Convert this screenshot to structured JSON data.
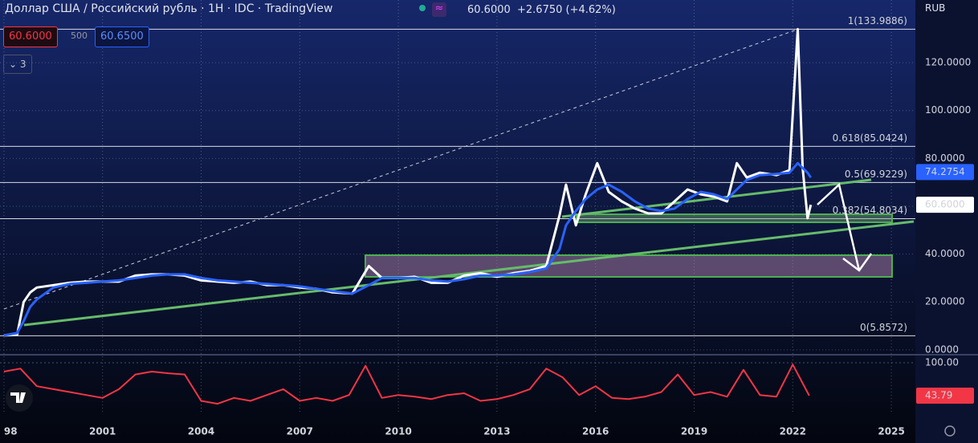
{
  "header": {
    "title": "Доллар США / Российский рубль · 1Н · IDC · TradingView",
    "price": "60.6000",
    "change": "+2.6750 (+4.62%)",
    "currency": "RUB",
    "sell": "60.6000",
    "spread": "500",
    "buy": "60.6500",
    "indicators": "3"
  },
  "chart_data": [
    {
      "type": "line",
      "x": [
        1998.0,
        1998.4,
        1998.6,
        1998.8,
        1999.0,
        1999.5,
        2000.0,
        2000.5,
        2001.0,
        2001.5,
        2002.0,
        2002.5,
        2003.0,
        2003.5,
        2004.0,
        2004.5,
        2005.0,
        2005.5,
        2006.0,
        2006.5,
        2007.0,
        2007.5,
        2008.0,
        2008.6,
        2009.1,
        2009.5,
        2010.0,
        2010.5,
        2011.0,
        2011.5,
        2012.0,
        2012.5,
        2013.0,
        2013.5,
        2014.0,
        2014.5,
        2014.9,
        2015.1,
        2015.4,
        2015.7,
        2016.05,
        2016.4,
        2016.8,
        2017.2,
        2017.6,
        2018.0,
        2018.4,
        2018.8,
        2019.2,
        2019.6,
        2020.0,
        2020.3,
        2020.6,
        2021.0,
        2021.5,
        2021.9,
        2022.15,
        2022.3,
        2022.45,
        2022.55
      ],
      "series": [
        {
          "color": "#ffffff",
          "values": [
            6,
            6.2,
            20,
            24,
            26,
            27,
            28,
            28.5,
            28.5,
            28.5,
            31,
            31.5,
            31.5,
            31,
            29,
            28.5,
            28,
            28.5,
            27,
            27,
            26,
            25.5,
            24,
            23.5,
            35,
            30,
            30,
            30.5,
            28,
            28,
            31,
            32,
            30.5,
            32,
            33,
            35,
            56,
            69,
            52,
            65,
            78,
            66,
            62,
            59,
            57,
            57,
            62,
            67,
            65,
            64,
            62,
            78,
            72,
            74,
            73,
            75,
            134,
            76,
            55,
            60.6
          ],
          "last_value": {
            "value": 60.6,
            "label": "60.6000"
          }
        },
        {
          "color": "#2962ff",
          "values": [
            6,
            7,
            12,
            18,
            21,
            26,
            27.5,
            28,
            28.5,
            29,
            30,
            31,
            31.5,
            31.5,
            30,
            29,
            28.5,
            28,
            27.5,
            27,
            26.5,
            25.5,
            24.5,
            23.5,
            27,
            30,
            30,
            30,
            29,
            28.5,
            29.5,
            31,
            31,
            31.5,
            32.5,
            34,
            42,
            52,
            58,
            63,
            67,
            69,
            66,
            62,
            59,
            58,
            59,
            63,
            66,
            65,
            63,
            67,
            71,
            73,
            73.5,
            74,
            78,
            76,
            74,
            72
          ],
          "last_value": 74.2754
        }
      ],
      "xlim": [
        1997.88,
        2025.73
      ],
      "xticks": [
        {
          "value": 1998,
          "label": "98"
        },
        2001,
        2004,
        2007,
        2010,
        2013,
        2016,
        2019,
        2022,
        2025
      ],
      "ylim": [
        -1.4,
        146.2
      ],
      "yticks": [
        {
          "value": 0,
          "label": "0.0000"
        },
        {
          "value": 20,
          "label": "20.0000"
        },
        {
          "value": 40,
          "label": "40.0000"
        },
        {
          "value": 60,
          "label": "60.0000"
        },
        {
          "value": 80,
          "label": "80.0000"
        },
        {
          "value": 100,
          "label": "100.0000"
        },
        {
          "value": 120,
          "label": "120.0000"
        }
      ],
      "grid": true,
      "fib_levels": [
        {
          "value": 133.9886,
          "label": "1(133.9886)"
        },
        {
          "value": 85.0424,
          "label": "0.618(85.0424)"
        },
        {
          "value": 69.9229,
          "label": "0.5(69.9229)"
        },
        {
          "value": 54.8034,
          "label": "0.382(54.8034)"
        },
        {
          "value": 5.8572,
          "label": "0(5.8572)"
        }
      ]
    },
    {
      "type": "line",
      "x": [
        1998.0,
        1998.5,
        1999.0,
        1999.5,
        2000.0,
        2000.5,
        2001.0,
        2001.5,
        2002.0,
        2002.5,
        2003.0,
        2003.5,
        2004.0,
        2004.5,
        2005.0,
        2005.5,
        2006.0,
        2006.5,
        2007.0,
        2007.5,
        2008.0,
        2008.5,
        2009.0,
        2009.5,
        2010.0,
        2010.5,
        2011.0,
        2011.5,
        2012.0,
        2012.5,
        2013.0,
        2013.5,
        2014.0,
        2014.5,
        2015.0,
        2015.5,
        2016.0,
        2016.5,
        2017.0,
        2017.5,
        2018.0,
        2018.5,
        2019.0,
        2019.5,
        2020.0,
        2020.5,
        2021.0,
        2021.5,
        2022.0,
        2022.5
      ],
      "series": [
        {
          "color": "#f23645",
          "values": [
            85,
            90,
            60,
            55,
            50,
            45,
            40,
            55,
            80,
            85,
            82,
            80,
            35,
            30,
            40,
            35,
            45,
            55,
            35,
            40,
            35,
            45,
            95,
            40,
            45,
            42,
            38,
            45,
            48,
            35,
            38,
            45,
            55,
            90,
            75,
            45,
            60,
            40,
            38,
            42,
            50,
            80,
            45,
            50,
            42,
            88,
            45,
            42,
            97,
            43.79
          ],
          "last_value": 43.79
        }
      ],
      "xlim": [
        1997.88,
        2025.73
      ],
      "ylim": [
        13.7,
        109.6
      ],
      "yticks": [
        {
          "value": 100,
          "label": "100.00"
        }
      ]
    }
  ]
}
